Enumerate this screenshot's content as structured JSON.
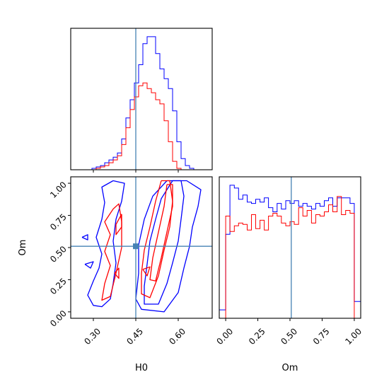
{
  "chart_data": [
    {
      "panel": "H0 marginal",
      "type": "histogram",
      "xlim": [
        0.22,
        0.72
      ],
      "truth": 0.45,
      "bin_edges": [
        0.22,
        0.235,
        0.25,
        0.265,
        0.28,
        0.295,
        0.31,
        0.325,
        0.34,
        0.355,
        0.37,
        0.385,
        0.4,
        0.415,
        0.43,
        0.445,
        0.46,
        0.475,
        0.49,
        0.505,
        0.52,
        0.535,
        0.55,
        0.565,
        0.58,
        0.595,
        0.61,
        0.625,
        0.64,
        0.655,
        0.67,
        0.685,
        0.7,
        0.715
      ],
      "series": [
        {
          "color": "#0000ff",
          "values": [
            0,
            0,
            0,
            0,
            0,
            0.01,
            0.02,
            0.03,
            0.05,
            0.07,
            0.09,
            0.12,
            0.22,
            0.37,
            0.5,
            0.62,
            0.75,
            0.9,
            0.95,
            0.95,
            0.83,
            0.72,
            0.65,
            0.58,
            0.42,
            0.2,
            0.08,
            0.03,
            0.01,
            0,
            0,
            0,
            0
          ]
        },
        {
          "color": "#ff0000",
          "values": [
            0,
            0,
            0,
            0,
            0,
            0,
            0.01,
            0.02,
            0.03,
            0.05,
            0.07,
            0.1,
            0.18,
            0.3,
            0.43,
            0.52,
            0.6,
            0.62,
            0.58,
            0.55,
            0.5,
            0.47,
            0.35,
            0.2,
            0.06,
            0.01,
            0,
            0,
            0,
            0,
            0,
            0,
            0
          ]
        }
      ]
    },
    {
      "panel": "H0 vs Om",
      "type": "contour",
      "xlabel": "H0",
      "ylabel": "Om",
      "xlim": [
        0.22,
        0.72
      ],
      "ylim": [
        -0.05,
        1.05
      ],
      "xticks": [
        0.3,
        0.45,
        0.6
      ],
      "xtick_labels": [
        "0.30",
        "0.45",
        "0.60"
      ],
      "yticks": [
        0,
        0.25,
        0.5,
        0.75,
        1.0
      ],
      "ytick_labels": [
        "0.00",
        "0.25",
        "0.50",
        "0.75",
        "1.00"
      ],
      "truth": [
        0.45,
        0.51
      ],
      "contours": [
        {
          "color": "#0000ff",
          "points": [
            [
              0.37,
              1.02
            ],
            [
              0.33,
              0.97
            ],
            [
              0.34,
              0.85
            ],
            [
              0.33,
              0.72
            ],
            [
              0.31,
              0.58
            ],
            [
              0.33,
              0.45
            ],
            [
              0.32,
              0.34
            ],
            [
              0.3,
              0.24
            ],
            [
              0.28,
              0.13
            ],
            [
              0.3,
              0.05
            ],
            [
              0.33,
              0.04
            ],
            [
              0.36,
              0.1
            ],
            [
              0.37,
              0.22
            ],
            [
              0.38,
              0.38
            ],
            [
              0.37,
              0.55
            ],
            [
              0.38,
              0.72
            ],
            [
              0.4,
              0.86
            ],
            [
              0.41,
              1.0
            ],
            [
              0.37,
              1.02
            ]
          ]
        },
        {
          "color": "#0000ff",
          "points": [
            [
              0.56,
              1.02
            ],
            [
              0.51,
              0.9
            ],
            [
              0.48,
              0.72
            ],
            [
              0.46,
              0.52
            ],
            [
              0.46,
              0.3
            ],
            [
              0.45,
              0.1
            ],
            [
              0.47,
              0.02
            ],
            [
              0.55,
              0.0
            ],
            [
              0.6,
              0.15
            ],
            [
              0.62,
              0.34
            ],
            [
              0.64,
              0.51
            ],
            [
              0.65,
              0.66
            ],
            [
              0.67,
              0.82
            ],
            [
              0.68,
              0.95
            ],
            [
              0.63,
              1.02
            ],
            [
              0.56,
              1.02
            ]
          ]
        },
        {
          "color": "#0000ff",
          "points": [
            [
              0.58,
              1.02
            ],
            [
              0.54,
              0.88
            ],
            [
              0.52,
              0.72
            ],
            [
              0.5,
              0.55
            ],
            [
              0.49,
              0.37
            ],
            [
              0.48,
              0.2
            ],
            [
              0.48,
              0.06
            ],
            [
              0.53,
              0.06
            ],
            [
              0.56,
              0.22
            ],
            [
              0.58,
              0.38
            ],
            [
              0.6,
              0.55
            ],
            [
              0.61,
              0.72
            ],
            [
              0.62,
              0.9
            ],
            [
              0.61,
              1.02
            ],
            [
              0.58,
              1.02
            ]
          ]
        },
        {
          "color": "#0000ff",
          "points": [
            [
              0.26,
              0.58
            ],
            [
              0.28,
              0.6
            ],
            [
              0.28,
              0.56
            ],
            [
              0.26,
              0.58
            ]
          ]
        },
        {
          "color": "#0000ff",
          "points": [
            [
              0.27,
              0.37
            ],
            [
              0.3,
              0.39
            ],
            [
              0.29,
              0.34
            ],
            [
              0.27,
              0.37
            ]
          ]
        },
        {
          "color": "#ff0000",
          "points": [
            [
              0.37,
              0.8
            ],
            [
              0.34,
              0.7
            ],
            [
              0.36,
              0.6
            ],
            [
              0.34,
              0.47
            ],
            [
              0.36,
              0.36
            ],
            [
              0.34,
              0.22
            ],
            [
              0.33,
              0.09
            ],
            [
              0.36,
              0.12
            ],
            [
              0.38,
              0.3
            ],
            [
              0.4,
              0.5
            ],
            [
              0.4,
              0.7
            ],
            [
              0.39,
              0.84
            ],
            [
              0.37,
              0.8
            ]
          ]
        },
        {
          "color": "#ff0000",
          "points": [
            [
              0.54,
              1.02
            ],
            [
              0.52,
              0.86
            ],
            [
              0.5,
              0.66
            ],
            [
              0.48,
              0.48
            ],
            [
              0.47,
              0.3
            ],
            [
              0.47,
              0.14
            ],
            [
              0.5,
              0.11
            ],
            [
              0.53,
              0.28
            ],
            [
              0.55,
              0.48
            ],
            [
              0.57,
              0.66
            ],
            [
              0.58,
              0.86
            ],
            [
              0.57,
              1.02
            ],
            [
              0.54,
              1.02
            ]
          ]
        },
        {
          "color": "#ff0000",
          "points": [
            [
              0.56,
              0.99
            ],
            [
              0.55,
              0.82
            ],
            [
              0.53,
              0.62
            ],
            [
              0.51,
              0.42
            ],
            [
              0.5,
              0.25
            ],
            [
              0.52,
              0.24
            ],
            [
              0.54,
              0.42
            ],
            [
              0.56,
              0.62
            ],
            [
              0.58,
              0.82
            ],
            [
              0.58,
              0.99
            ],
            [
              0.56,
              0.99
            ]
          ]
        },
        {
          "color": "#ff0000",
          "points": [
            [
              0.4,
              0.76
            ],
            [
              0.38,
              0.68
            ],
            [
              0.38,
              0.6
            ],
            [
              0.4,
              0.66
            ],
            [
              0.4,
              0.76
            ]
          ]
        },
        {
          "color": "#ff0000",
          "points": [
            [
              0.475,
              0.33
            ],
            [
              0.5,
              0.35
            ],
            [
              0.49,
              0.28
            ],
            [
              0.475,
              0.33
            ]
          ]
        },
        {
          "color": "#ff0000",
          "points": [
            [
              0.375,
              0.3
            ],
            [
              0.39,
              0.34
            ],
            [
              0.39,
              0.26
            ],
            [
              0.375,
              0.3
            ]
          ]
        }
      ]
    },
    {
      "panel": "Om marginal",
      "type": "histogram",
      "xlabel": "Om",
      "xlim": [
        -0.05,
        1.05
      ],
      "xticks": [
        0,
        0.25,
        0.5,
        0.75,
        1.0
      ],
      "xtick_labels": [
        "0.00",
        "0.25",
        "0.50",
        "0.75",
        "1.00"
      ],
      "truth": 0.51,
      "bin_edges": [
        -0.05,
        0.0,
        0.033,
        0.067,
        0.1,
        0.133,
        0.167,
        0.2,
        0.233,
        0.267,
        0.3,
        0.333,
        0.367,
        0.4,
        0.433,
        0.467,
        0.5,
        0.533,
        0.567,
        0.6,
        0.633,
        0.667,
        0.7,
        0.733,
        0.767,
        0.8,
        0.833,
        0.867,
        0.9,
        0.933,
        0.967,
        1.0,
        1.05
      ],
      "series": [
        {
          "color": "#0000ff",
          "values": [
            0.06,
            0.6,
            0.95,
            0.93,
            0.85,
            0.88,
            0.83,
            0.82,
            0.85,
            0.83,
            0.86,
            0.79,
            0.76,
            0.82,
            0.78,
            0.84,
            0.82,
            0.84,
            0.8,
            0.82,
            0.8,
            0.78,
            0.82,
            0.8,
            0.84,
            0.86,
            0.8,
            0.86,
            0.86,
            0.86,
            0.82,
            0.12
          ]
        },
        {
          "color": "#ff0000",
          "values": [
            0,
            0.73,
            0.62,
            0.66,
            0.68,
            0.67,
            0.63,
            0.74,
            0.64,
            0.7,
            0.63,
            0.73,
            0.75,
            0.73,
            0.68,
            0.66,
            0.69,
            0.67,
            0.79,
            0.73,
            0.77,
            0.68,
            0.74,
            0.73,
            0.76,
            0.81,
            0.76,
            0.87,
            0.74,
            0.77,
            0.75,
            0.0
          ]
        }
      ]
    }
  ]
}
